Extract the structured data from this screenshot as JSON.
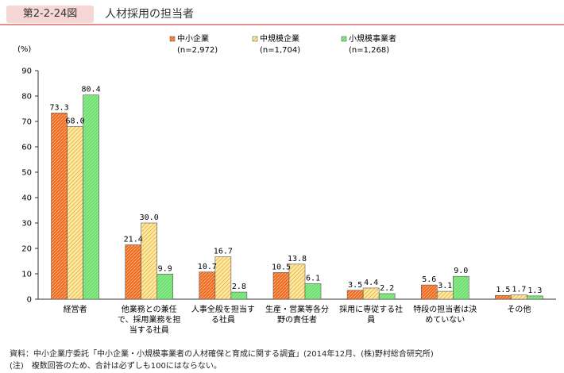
{
  "header": {
    "figure_number": "第2-2-24図",
    "title": "人材採用の担当者"
  },
  "chart_data": {
    "type": "bar",
    "ylabel": "(%)",
    "ylim": [
      0,
      90
    ],
    "yticks": [
      0,
      10,
      20,
      30,
      40,
      50,
      60,
      70,
      80,
      90
    ],
    "grid": false,
    "legend_position": "top-right",
    "categories": [
      [
        "経営者"
      ],
      [
        "他業務との兼任",
        "で、採用業務を担",
        "当する社員"
      ],
      [
        "人事全般を担当す",
        "る社員"
      ],
      [
        "生産・営業等各分",
        "野の責任者"
      ],
      [
        "採用に専従する社",
        "員"
      ],
      [
        "特段の担当者は決",
        "めていない"
      ],
      [
        "その他"
      ]
    ],
    "series": [
      {
        "name": "中小企業",
        "n_label": "(n=2,972)",
        "color": "#f26b1d",
        "values": [
          73.3,
          21.4,
          10.7,
          10.5,
          3.5,
          5.6,
          1.5
        ],
        "labels": [
          "73.3",
          "21.4",
          "10.7",
          "10.5",
          "3.5",
          "5.6",
          "1.5"
        ]
      },
      {
        "name": "中規模企業",
        "n_label": "(n=1,704)",
        "color": "#ffe9a8",
        "values": [
          68.0,
          30.0,
          16.7,
          13.8,
          4.4,
          3.1,
          1.7
        ],
        "labels": [
          "68.0",
          "30.0",
          "16.7",
          "13.8",
          "4.4",
          "3.1",
          "1.7"
        ]
      },
      {
        "name": "小規模事業者",
        "n_label": "(n=1,268)",
        "color": "#6ee06e",
        "values": [
          80.4,
          9.9,
          2.8,
          6.1,
          2.2,
          9.0,
          1.3
        ],
        "labels": [
          "80.4",
          "9.9",
          "2.8",
          "6.1",
          "2.2",
          "9.0",
          "1.3"
        ]
      }
    ]
  },
  "notes": {
    "source": "資料：中小企業庁委託「中小企業・小規模事業者の人材確保と育成に関する調査」(2014年12月、(株)野村総合研究所)",
    "remark": "(注)　複数回答のため、合計は必ずしも100にはならない。"
  }
}
